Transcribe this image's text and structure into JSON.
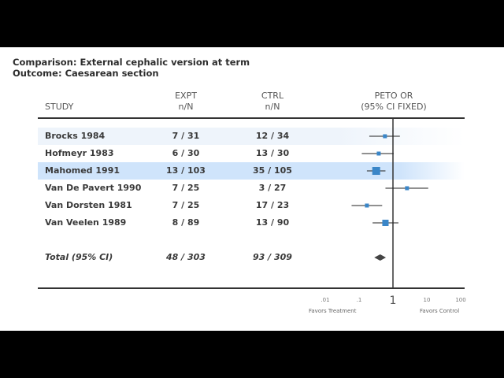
{
  "header": {
    "comparison": "Comparison: External cephalic version at term",
    "outcome": "Outcome: Caesarean section"
  },
  "columns": {
    "study": "STUDY",
    "expt_line1": "EXPT",
    "expt_line2": "n/N",
    "ctrl_line1": "CTRL",
    "ctrl_line2": "n/N",
    "or_line1": "PETO OR",
    "or_line2": "(95% CI FIXED)"
  },
  "highlight_color": "#cfe4fb",
  "band_color": "#eef4fb",
  "marker_color": "#3a86c8",
  "total_marker_color": "#444444",
  "rows": [
    {
      "study": "Brocks 1984",
      "expt": "7 / 31",
      "ctrl": "12 / 34"
    },
    {
      "study": "Hofmeyr 1983",
      "expt": "6 / 30",
      "ctrl": "13 / 30"
    },
    {
      "study": "Mahomed 1991",
      "expt": "13 / 103",
      "ctrl": "35 / 105"
    },
    {
      "study": "Van De Pavert 1990",
      "expt": "7 / 25",
      "ctrl": "3 / 27"
    },
    {
      "study": "Van Dorsten 1981",
      "expt": "7 / 25",
      "ctrl": "17 / 23"
    },
    {
      "study": "Van Veelen 1989",
      "expt": "8 / 89",
      "ctrl": "13 / 90"
    }
  ],
  "total": {
    "study": "Total (95% CI)",
    "expt": "48 / 303",
    "ctrl": "93 / 309"
  },
  "axis": {
    "ticks": [
      ".01",
      ".1",
      "1",
      "10",
      "100"
    ],
    "favors_left": "Favors Treatment",
    "favors_right": "Favors Control"
  },
  "chart_data": {
    "type": "scatter",
    "scale": "log",
    "xlim": [
      0.01,
      100
    ],
    "reference_line": 1,
    "highlighted_study": "Mahomed 1991",
    "studies": [
      {
        "name": "Brocks 1984",
        "or": 0.58,
        "ci": [
          0.2,
          1.6
        ],
        "weight": "small"
      },
      {
        "name": "Hofmeyr 1983",
        "or": 0.38,
        "ci": [
          0.12,
          1.05
        ],
        "weight": "small"
      },
      {
        "name": "Mahomed 1991",
        "or": 0.32,
        "ci": [
          0.17,
          0.6
        ],
        "weight": "large"
      },
      {
        "name": "Van De Pavert 1990",
        "or": 2.6,
        "ci": [
          0.6,
          11
        ],
        "weight": "small"
      },
      {
        "name": "Van Dorsten 1981",
        "or": 0.17,
        "ci": [
          0.06,
          0.48
        ],
        "weight": "small"
      },
      {
        "name": "Van Veelen 1989",
        "or": 0.6,
        "ci": [
          0.25,
          1.45
        ],
        "weight": "medium"
      }
    ],
    "total": {
      "or": 0.42,
      "ci": [
        0.28,
        0.62
      ]
    }
  }
}
